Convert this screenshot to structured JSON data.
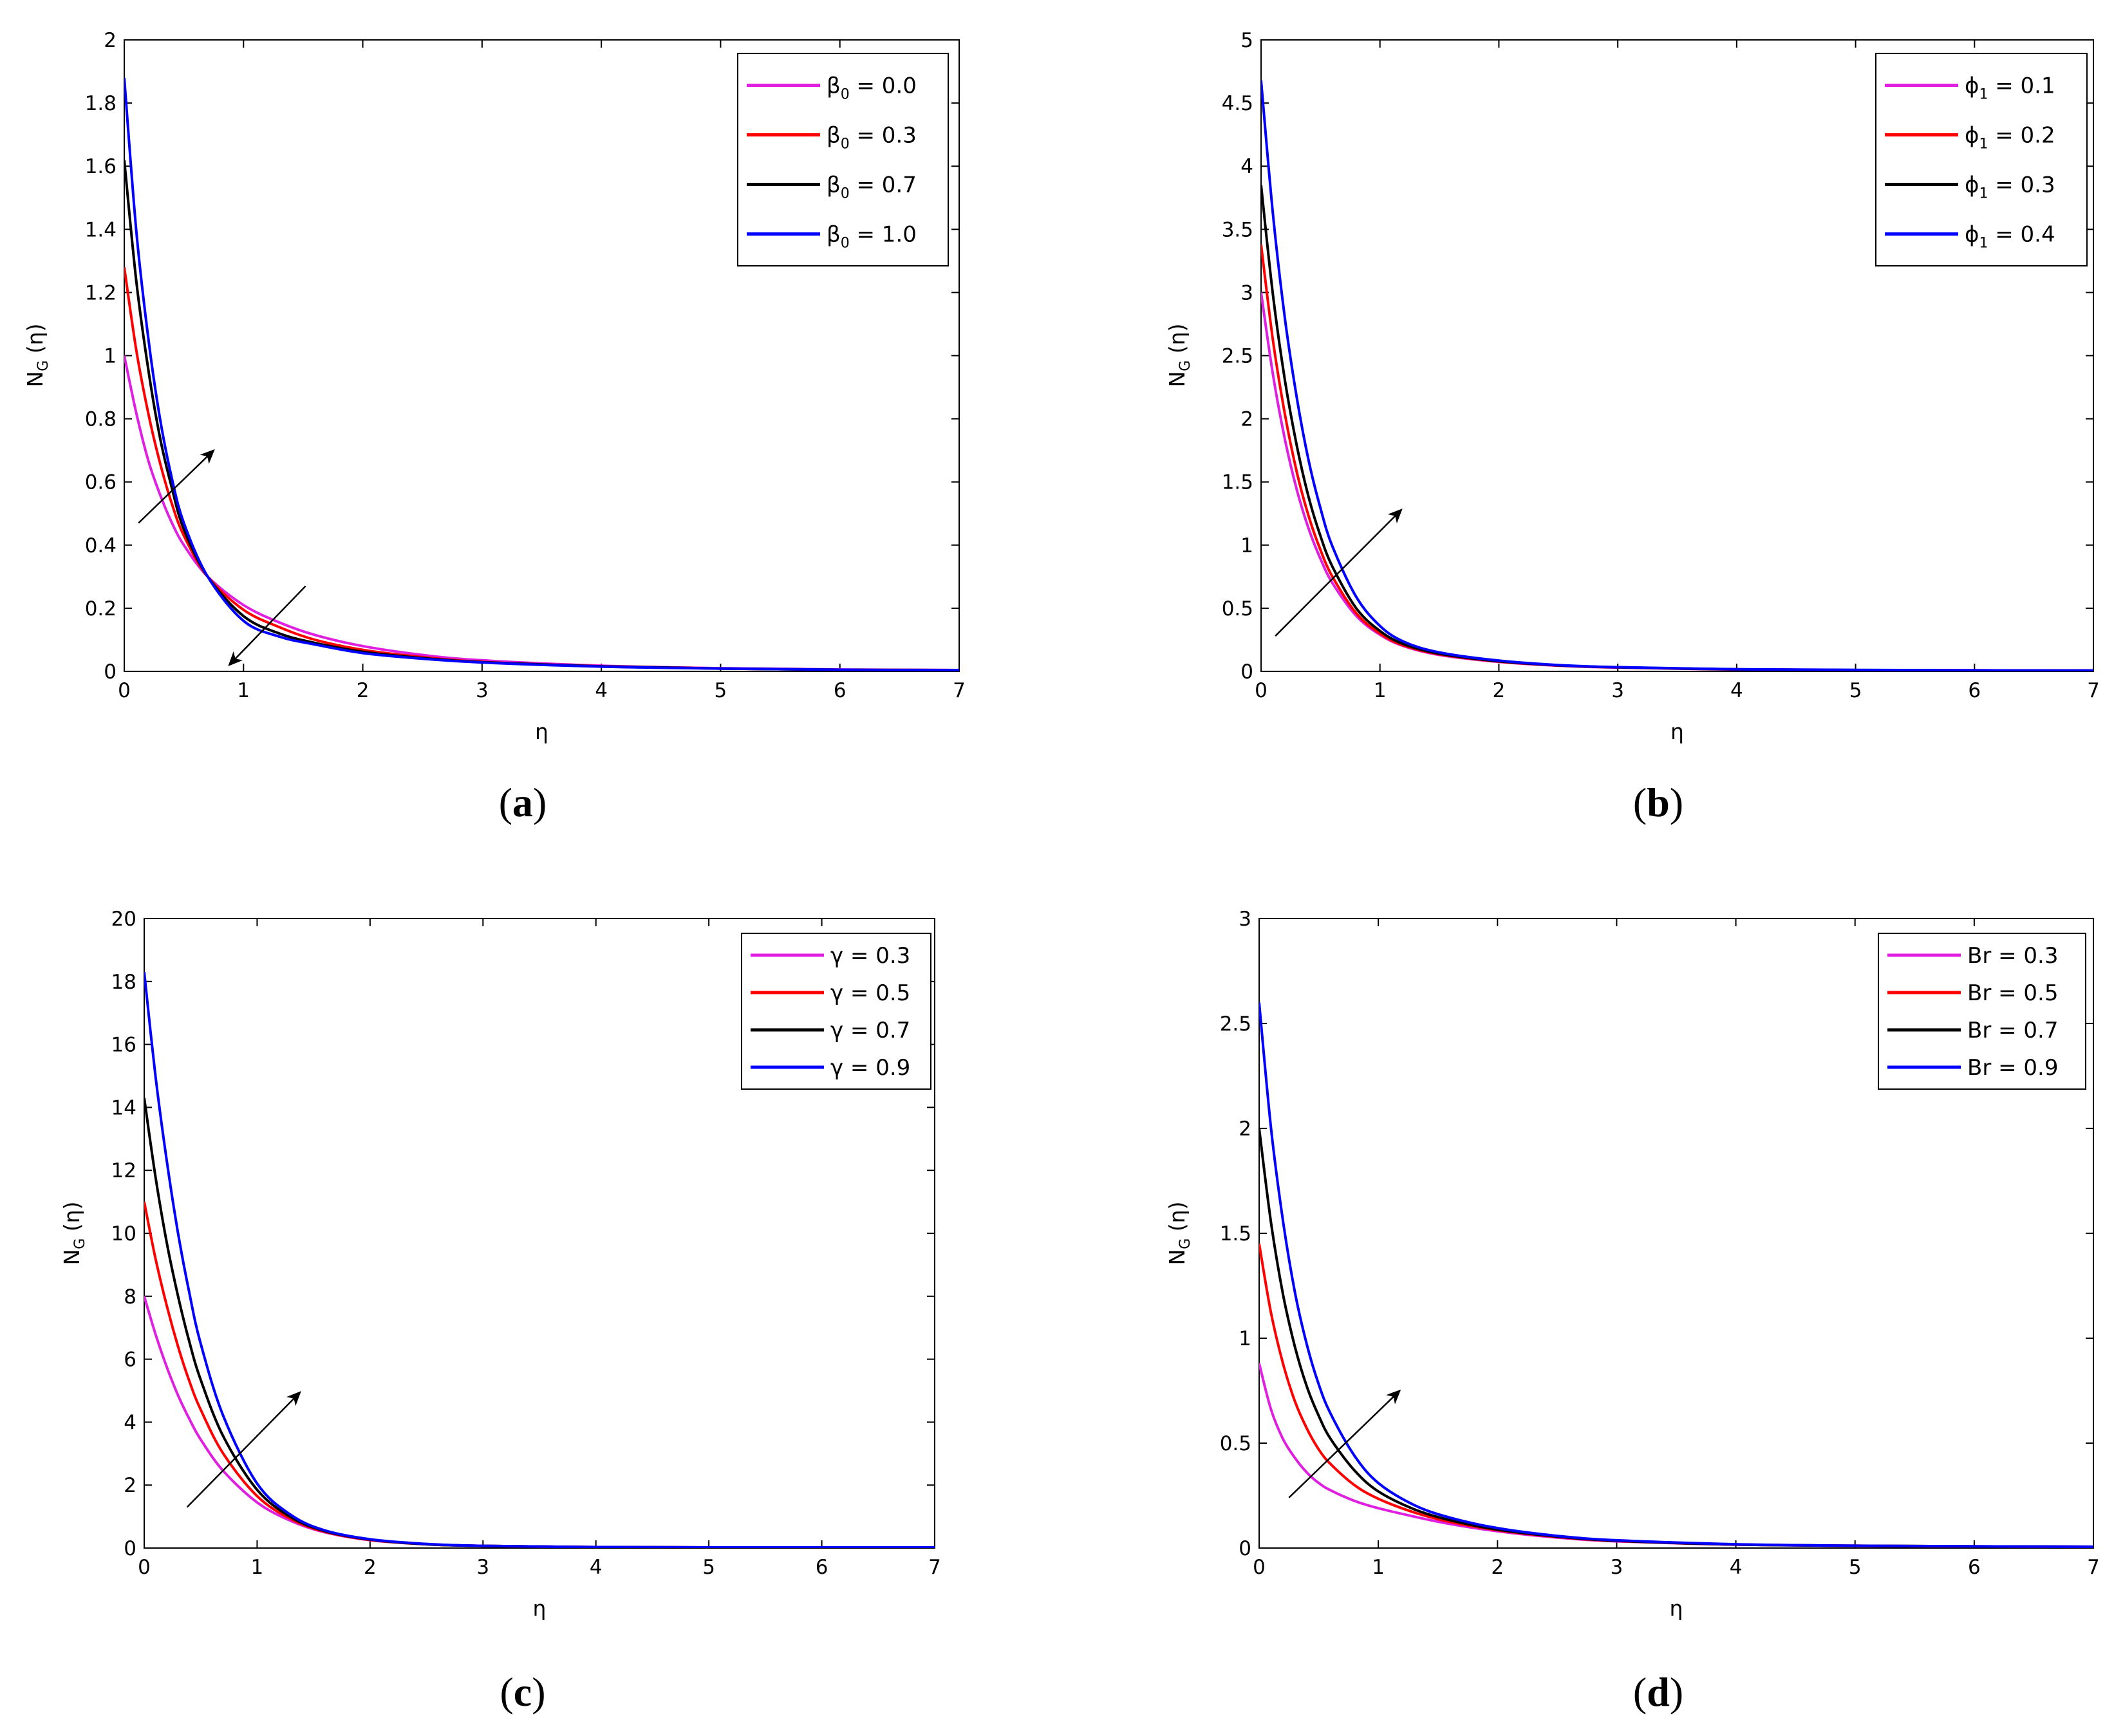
{
  "chart_data": [
    {
      "panel": "a",
      "caption": "a",
      "type": "line",
      "xlabel": "η",
      "ylabel": "N",
      "ylabel_sub": "G",
      "ylabel_tail": " (η)",
      "xlim": [
        0,
        7
      ],
      "ylim": [
        0,
        2
      ],
      "xticks": [
        0,
        1,
        2,
        3,
        4,
        5,
        6,
        7
      ],
      "yticks": [
        0,
        0.2,
        0.4,
        0.6,
        0.8,
        1,
        1.2,
        1.4,
        1.6,
        1.8,
        2
      ],
      "ytick_labels": [
        "0",
        "0.2",
        "0.4",
        "0.6",
        "0.8",
        "1",
        "1.2",
        "1.4",
        "1.6",
        "1.8",
        "2"
      ],
      "legend_position": "top-right",
      "series": [
        {
          "name": "β₀ = 0.0",
          "sym": "β",
          "sub": "0",
          "rest": " = 0.0",
          "color": "#e020e0",
          "x": [
            0,
            0.1,
            0.2,
            0.3,
            0.4,
            0.5,
            0.7,
            1.0,
            1.3,
            1.6,
            2.0,
            2.5,
            3.0,
            4.0,
            5.0,
            6.0,
            7.0
          ],
          "y": [
            1.0,
            0.82,
            0.67,
            0.56,
            0.47,
            0.4,
            0.3,
            0.21,
            0.155,
            0.115,
            0.08,
            0.052,
            0.035,
            0.018,
            0.01,
            0.006,
            0.004
          ]
        },
        {
          "name": "β₀ = 0.3",
          "sym": "β",
          "sub": "0",
          "rest": " = 0.3",
          "color": "#ff0000",
          "x": [
            0,
            0.1,
            0.2,
            0.3,
            0.4,
            0.5,
            0.7,
            1.0,
            1.3,
            1.6,
            2.0,
            2.5,
            3.0,
            4.0,
            5.0,
            6.0,
            7.0
          ],
          "y": [
            1.28,
            1.02,
            0.82,
            0.66,
            0.53,
            0.43,
            0.3,
            0.195,
            0.14,
            0.1,
            0.068,
            0.045,
            0.03,
            0.016,
            0.009,
            0.005,
            0.004
          ]
        },
        {
          "name": "β₀ = 0.7",
          "sym": "β",
          "sub": "0",
          "rest": " = 0.7",
          "color": "#000000",
          "x": [
            0,
            0.1,
            0.2,
            0.3,
            0.4,
            0.5,
            0.7,
            1.0,
            1.3,
            1.6,
            2.0,
            2.5,
            3.0,
            4.0,
            5.0,
            6.0,
            7.0
          ],
          "y": [
            1.62,
            1.24,
            0.96,
            0.74,
            0.58,
            0.45,
            0.3,
            0.175,
            0.12,
            0.09,
            0.062,
            0.042,
            0.029,
            0.016,
            0.009,
            0.005,
            0.004
          ]
        },
        {
          "name": "β₀ = 1.0",
          "sym": "β",
          "sub": "0",
          "rest": " = 1.0",
          "color": "#0000ff",
          "x": [
            0,
            0.1,
            0.2,
            0.3,
            0.4,
            0.5,
            0.7,
            1.0,
            1.3,
            1.6,
            2.0,
            2.5,
            3.0,
            4.0,
            5.0,
            6.0,
            7.0
          ],
          "y": [
            1.88,
            1.4,
            1.06,
            0.8,
            0.61,
            0.47,
            0.3,
            0.16,
            0.11,
            0.085,
            0.058,
            0.04,
            0.028,
            0.015,
            0.009,
            0.005,
            0.004
          ]
        }
      ],
      "arrows": [
        {
          "from": [
            0.12,
            0.47
          ],
          "to": [
            0.75,
            0.7
          ]
        },
        {
          "from": [
            1.52,
            0.27
          ],
          "to": [
            0.88,
            0.02
          ]
        }
      ]
    },
    {
      "panel": "b",
      "caption": "b",
      "type": "line",
      "xlabel": "η",
      "ylabel": "N",
      "ylabel_sub": "G",
      "ylabel_tail": " (η)",
      "xlim": [
        0,
        7
      ],
      "ylim": [
        0,
        5
      ],
      "xticks": [
        0,
        1,
        2,
        3,
        4,
        5,
        6,
        7
      ],
      "yticks": [
        0,
        0.5,
        1,
        1.5,
        2,
        2.5,
        3,
        3.5,
        4,
        4.5,
        5
      ],
      "ytick_labels": [
        "0",
        "0.5",
        "1",
        "1.5",
        "2",
        "2.5",
        "3",
        "3.5",
        "4",
        "4.5",
        "5"
      ],
      "legend_position": "top-right",
      "series": [
        {
          "name": "ϕ₁ = 0.1",
          "sym": "ϕ",
          "sub": "1",
          "rest": " = 0.1",
          "color": "#e020e0",
          "x": [
            0,
            0.1,
            0.2,
            0.3,
            0.4,
            0.5,
            0.6,
            0.8,
            1.0,
            1.2,
            1.5,
            2.0,
            2.5,
            3.0,
            4.0,
            5.0,
            6.0,
            7.0
          ],
          "y": [
            3.0,
            2.35,
            1.84,
            1.44,
            1.13,
            0.89,
            0.7,
            0.44,
            0.29,
            0.2,
            0.13,
            0.075,
            0.045,
            0.03,
            0.015,
            0.01,
            0.008,
            0.006
          ]
        },
        {
          "name": "ϕ₁ = 0.2",
          "sym": "ϕ",
          "sub": "1",
          "rest": " = 0.2",
          "color": "#ff0000",
          "x": [
            0,
            0.1,
            0.2,
            0.3,
            0.4,
            0.5,
            0.6,
            0.8,
            1.0,
            1.2,
            1.5,
            2.0,
            2.5,
            3.0,
            4.0,
            5.0,
            6.0,
            7.0
          ],
          "y": [
            3.38,
            2.62,
            2.04,
            1.58,
            1.23,
            0.96,
            0.75,
            0.46,
            0.3,
            0.205,
            0.135,
            0.078,
            0.047,
            0.031,
            0.016,
            0.01,
            0.008,
            0.006
          ]
        },
        {
          "name": "ϕ₁ = 0.3",
          "sym": "ϕ",
          "sub": "1",
          "rest": " = 0.3",
          "color": "#000000",
          "x": [
            0,
            0.1,
            0.2,
            0.3,
            0.4,
            0.5,
            0.6,
            0.8,
            1.0,
            1.2,
            1.5,
            2.0,
            2.5,
            3.0,
            4.0,
            5.0,
            6.0,
            7.0
          ],
          "y": [
            3.85,
            2.98,
            2.31,
            1.79,
            1.38,
            1.07,
            0.83,
            0.5,
            0.32,
            0.215,
            0.14,
            0.08,
            0.048,
            0.032,
            0.016,
            0.01,
            0.008,
            0.006
          ]
        },
        {
          "name": "ϕ₁ = 0.4",
          "sym": "ϕ",
          "sub": "1",
          "rest": " = 0.4",
          "color": "#0000ff",
          "x": [
            0,
            0.1,
            0.2,
            0.3,
            0.4,
            0.5,
            0.6,
            0.8,
            1.0,
            1.2,
            1.5,
            2.0,
            2.5,
            3.0,
            4.0,
            5.0,
            6.0,
            7.0
          ],
          "y": [
            4.68,
            3.62,
            2.8,
            2.17,
            1.67,
            1.29,
            0.99,
            0.59,
            0.36,
            0.235,
            0.15,
            0.085,
            0.05,
            0.033,
            0.017,
            0.011,
            0.008,
            0.006
          ]
        }
      ],
      "arrows": [
        {
          "from": [
            0.12,
            0.28
          ],
          "to": [
            1.18,
            1.28
          ]
        }
      ]
    },
    {
      "panel": "c",
      "caption": "c",
      "type": "line",
      "xlabel": "η",
      "ylabel": "N",
      "ylabel_sub": "G",
      "ylabel_tail": " (η)",
      "xlim": [
        0,
        7
      ],
      "ylim": [
        0,
        20
      ],
      "xticks": [
        0,
        1,
        2,
        3,
        4,
        5,
        6,
        7
      ],
      "yticks": [
        0,
        2,
        4,
        6,
        8,
        10,
        12,
        14,
        16,
        18,
        20
      ],
      "ytick_labels": [
        "0",
        "2",
        "4",
        "6",
        "8",
        "10",
        "12",
        "14",
        "16",
        "18",
        "20"
      ],
      "legend_position": "top-right",
      "series": [
        {
          "name": "γ = 0.3",
          "sym": "γ",
          "sub": "",
          "rest": " = 0.3",
          "color": "#e020e0",
          "x": [
            0,
            0.1,
            0.2,
            0.3,
            0.4,
            0.5,
            0.7,
            1.0,
            1.3,
            1.6,
            2.0,
            2.5,
            3.0,
            4.0,
            5.0,
            6.0,
            7.0
          ],
          "y": [
            8.0,
            6.8,
            5.75,
            4.85,
            4.1,
            3.45,
            2.45,
            1.45,
            0.86,
            0.5,
            0.25,
            0.12,
            0.07,
            0.03,
            0.02,
            0.02,
            0.02
          ]
        },
        {
          "name": "γ = 0.5",
          "sym": "γ",
          "sub": "",
          "rest": " = 0.5",
          "color": "#ff0000",
          "x": [
            0,
            0.1,
            0.2,
            0.3,
            0.4,
            0.5,
            0.7,
            1.0,
            1.3,
            1.6,
            2.0,
            2.5,
            3.0,
            4.0,
            5.0,
            6.0,
            7.0
          ],
          "y": [
            11.0,
            9.2,
            7.7,
            6.4,
            5.3,
            4.4,
            3.0,
            1.65,
            0.92,
            0.52,
            0.26,
            0.12,
            0.07,
            0.03,
            0.02,
            0.02,
            0.02
          ]
        },
        {
          "name": "γ = 0.7",
          "sym": "γ",
          "sub": "",
          "rest": " = 0.7",
          "color": "#000000",
          "x": [
            0,
            0.1,
            0.2,
            0.3,
            0.4,
            0.5,
            0.7,
            1.0,
            1.3,
            1.6,
            2.0,
            2.5,
            3.0,
            4.0,
            5.0,
            6.0,
            7.0
          ],
          "y": [
            14.3,
            11.8,
            9.7,
            8.0,
            6.55,
            5.35,
            3.55,
            1.85,
            0.98,
            0.54,
            0.27,
            0.12,
            0.07,
            0.03,
            0.02,
            0.02,
            0.02
          ]
        },
        {
          "name": "γ = 0.9",
          "sym": "γ",
          "sub": "",
          "rest": " = 0.9",
          "color": "#0000ff",
          "x": [
            0,
            0.1,
            0.2,
            0.3,
            0.4,
            0.5,
            0.7,
            1.0,
            1.3,
            1.6,
            2.0,
            2.5,
            3.0,
            4.0,
            5.0,
            6.0,
            7.0
          ],
          "y": [
            18.3,
            15.0,
            12.3,
            10.0,
            8.1,
            6.5,
            4.2,
            2.05,
            1.05,
            0.56,
            0.28,
            0.13,
            0.07,
            0.03,
            0.02,
            0.02,
            0.02
          ]
        }
      ],
      "arrows": [
        {
          "from": [
            0.38,
            1.3
          ],
          "to": [
            1.38,
            4.95
          ]
        }
      ]
    },
    {
      "panel": "d",
      "caption": "d",
      "type": "line",
      "xlabel": "η",
      "ylabel": "N",
      "ylabel_sub": "G",
      "ylabel_tail": " (η)",
      "xlim": [
        0,
        7
      ],
      "ylim": [
        0,
        3
      ],
      "xticks": [
        0,
        1,
        2,
        3,
        4,
        5,
        6,
        7
      ],
      "yticks": [
        0,
        0.5,
        1,
        1.5,
        2,
        2.5,
        3
      ],
      "ytick_labels": [
        "0",
        "0.5",
        "1",
        "1.5",
        "2",
        "2.5",
        "3"
      ],
      "legend_position": "top-right",
      "series": [
        {
          "name": "Br = 0.3",
          "sym": "Br",
          "sub": "",
          "rest": " = 0.3",
          "color": "#e020e0",
          "x": [
            0,
            0.1,
            0.2,
            0.3,
            0.4,
            0.5,
            0.6,
            0.8,
            1.0,
            1.3,
            1.6,
            2.0,
            2.5,
            3.0,
            4.0,
            5.0,
            6.0,
            7.0
          ],
          "y": [
            0.88,
            0.66,
            0.52,
            0.43,
            0.36,
            0.31,
            0.275,
            0.225,
            0.19,
            0.15,
            0.115,
            0.08,
            0.05,
            0.032,
            0.016,
            0.01,
            0.008,
            0.006
          ]
        },
        {
          "name": "Br = 0.5",
          "sym": "Br",
          "sub": "",
          "rest": " = 0.5",
          "color": "#ff0000",
          "x": [
            0,
            0.1,
            0.2,
            0.3,
            0.4,
            0.5,
            0.6,
            0.8,
            1.0,
            1.3,
            1.6,
            2.0,
            2.5,
            3.0,
            4.0,
            5.0,
            6.0,
            7.0
          ],
          "y": [
            1.45,
            1.12,
            0.88,
            0.7,
            0.57,
            0.47,
            0.4,
            0.3,
            0.235,
            0.17,
            0.125,
            0.085,
            0.053,
            0.034,
            0.017,
            0.011,
            0.008,
            0.006
          ]
        },
        {
          "name": "Br = 0.7",
          "sym": "Br",
          "sub": "",
          "rest": " = 0.7",
          "color": "#000000",
          "x": [
            0,
            0.1,
            0.2,
            0.3,
            0.4,
            0.5,
            0.6,
            0.8,
            1.0,
            1.3,
            1.6,
            2.0,
            2.5,
            3.0,
            4.0,
            5.0,
            6.0,
            7.0
          ],
          "y": [
            2.0,
            1.55,
            1.21,
            0.96,
            0.77,
            0.63,
            0.52,
            0.37,
            0.27,
            0.185,
            0.133,
            0.088,
            0.055,
            0.035,
            0.017,
            0.011,
            0.008,
            0.006
          ]
        },
        {
          "name": "Br = 0.9",
          "sym": "Br",
          "sub": "",
          "rest": " = 0.9",
          "color": "#0000ff",
          "x": [
            0,
            0.1,
            0.2,
            0.3,
            0.4,
            0.5,
            0.6,
            0.8,
            1.0,
            1.3,
            1.6,
            2.0,
            2.5,
            3.0,
            4.0,
            5.0,
            6.0,
            7.0
          ],
          "y": [
            2.6,
            2.0,
            1.56,
            1.22,
            0.97,
            0.78,
            0.64,
            0.44,
            0.31,
            0.205,
            0.145,
            0.095,
            0.058,
            0.037,
            0.018,
            0.011,
            0.008,
            0.006
          ]
        }
      ],
      "arrows": [
        {
          "from": [
            0.25,
            0.24
          ],
          "to": [
            1.18,
            0.75
          ]
        }
      ]
    }
  ]
}
